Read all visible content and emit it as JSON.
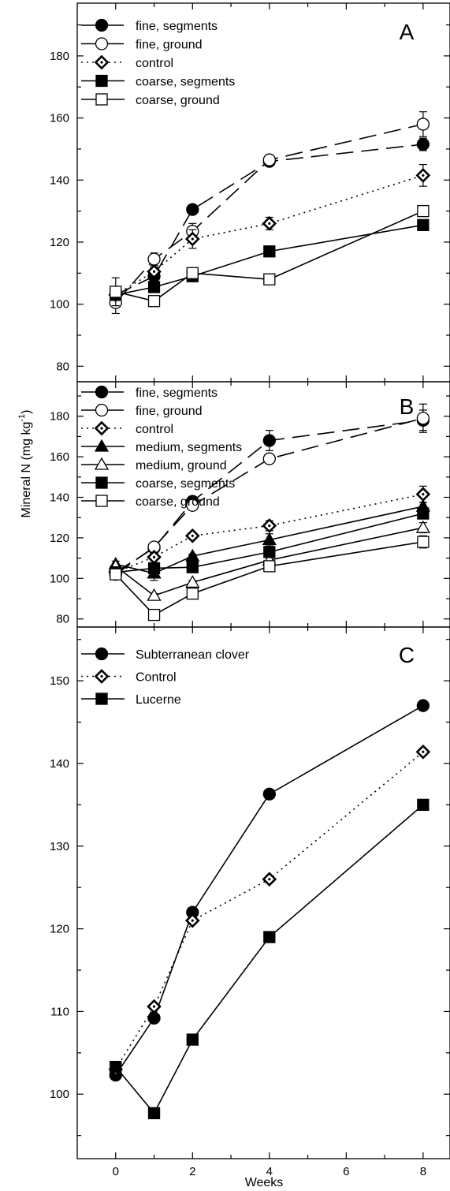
{
  "figure": {
    "y_axis_label": "Mineral N (mg kg",
    "y_axis_label_exponent": "-1",
    "y_axis_label_close": ")",
    "x_axis_label": "Weeks"
  },
  "chart_data": [
    {
      "type": "line",
      "panel_label": "A",
      "title": "",
      "xlabel": "",
      "ylabel": "",
      "xlim": [
        -1,
        8.7
      ],
      "ylim": [
        75,
        197
      ],
      "x_ticks": [
        0,
        2,
        4,
        6,
        8
      ],
      "y_ticks": [
        80,
        100,
        120,
        140,
        160,
        180
      ],
      "y_minor_step": 10,
      "legend_position": "top-left",
      "x": [
        0,
        1,
        2,
        4,
        8
      ],
      "series": [
        {
          "name": "fine, segments",
          "marker": "circle",
          "fill": "filled",
          "line": "long-dash",
          "values": [
            103,
            109,
            130.5,
            146,
            151.5
          ],
          "errors": [
            0,
            1.5,
            1.5,
            1,
            2
          ]
        },
        {
          "name": "fine, ground",
          "marker": "circle",
          "fill": "open",
          "line": "long-dash",
          "values": [
            100.5,
            114.5,
            123.5,
            146.5,
            158
          ],
          "errors": [
            3.5,
            2,
            2.5,
            1,
            4
          ]
        },
        {
          "name": "control",
          "marker": "diamond",
          "fill": "dotted",
          "line": "dotted",
          "values": [
            103,
            110.5,
            121,
            126,
            141.5
          ],
          "errors": [
            0,
            1.5,
            3,
            2,
            3.5
          ]
        },
        {
          "name": "coarse, segments",
          "marker": "square",
          "fill": "filled",
          "line": "solid",
          "values": [
            103,
            105.5,
            109,
            117,
            125.5
          ],
          "errors": [
            0,
            1.5,
            1,
            1,
            1
          ]
        },
        {
          "name": "coarse, ground",
          "marker": "square",
          "fill": "open",
          "line": "solid",
          "values": [
            104,
            101,
            110,
            108,
            130
          ],
          "errors": [
            4.5,
            1,
            1,
            1,
            1
          ]
        }
      ]
    },
    {
      "type": "line",
      "panel_label": "B",
      "title": "",
      "xlabel": "",
      "ylabel": "",
      "xlim": [
        -1,
        8.7
      ],
      "ylim": [
        76,
        197
      ],
      "x_ticks": [
        0,
        2,
        4,
        6,
        8
      ],
      "y_ticks": [
        80,
        100,
        120,
        140,
        160,
        180
      ],
      "y_minor_step": 10,
      "legend_position": "top-left",
      "x": [
        0,
        1,
        2,
        4,
        8
      ],
      "series": [
        {
          "name": "fine, segments",
          "marker": "circle",
          "fill": "filled",
          "line": "long-dash",
          "values": [
            103,
            115,
            138,
            168,
            178
          ],
          "errors": [
            0,
            1,
            2.5,
            5,
            5
          ]
        },
        {
          "name": "fine, ground",
          "marker": "circle",
          "fill": "open",
          "line": "long-dash",
          "values": [
            102,
            115.5,
            136,
            159,
            179
          ],
          "errors": [
            2,
            1,
            1.5,
            1,
            7
          ]
        },
        {
          "name": "control",
          "marker": "diamond",
          "fill": "dotted",
          "line": "dotted",
          "values": [
            103,
            110.5,
            121,
            126,
            141.5
          ],
          "errors": [
            0,
            1.5,
            1.5,
            2.5,
            4
          ]
        },
        {
          "name": "medium, segments",
          "marker": "triangle",
          "fill": "filled",
          "line": "solid",
          "values": [
            107,
            102.5,
            111,
            119,
            135.5
          ],
          "errors": [
            1.5,
            3.5,
            1,
            3,
            2
          ]
        },
        {
          "name": "medium, ground",
          "marker": "triangle",
          "fill": "open",
          "line": "solid",
          "values": [
            106,
            91.5,
            98,
            109,
            125
          ],
          "errors": [
            1,
            1,
            1,
            1.5,
            2.5
          ]
        },
        {
          "name": "coarse, segments",
          "marker": "square",
          "fill": "filled",
          "line": "solid",
          "values": [
            103,
            105,
            105.5,
            113,
            132
          ],
          "errors": [
            0,
            1,
            1,
            1,
            2
          ]
        },
        {
          "name": "coarse, ground",
          "marker": "square",
          "fill": "open",
          "line": "solid",
          "values": [
            102,
            82,
            92.5,
            106,
            118
          ],
          "errors": [
            2.5,
            1,
            1,
            1,
            3
          ]
        }
      ]
    },
    {
      "type": "line",
      "panel_label": "C",
      "title": "",
      "xlabel": "",
      "ylabel": "",
      "xlim": [
        -1,
        8.7
      ],
      "ylim": [
        92.2,
        156.5
      ],
      "x_ticks": [
        0,
        2,
        4,
        6,
        8
      ],
      "y_ticks": [
        100,
        110,
        120,
        130,
        140,
        150
      ],
      "y_minor_step": 5,
      "legend_position": "top-left",
      "x": [
        0,
        1,
        2,
        4,
        8
      ],
      "series": [
        {
          "name": "Subterranean clover",
          "marker": "circle",
          "fill": "filled",
          "line": "solid",
          "values": [
            102.3,
            109.2,
            122,
            136.3,
            147
          ],
          "errors": []
        },
        {
          "name": "Control",
          "marker": "diamond",
          "fill": "dotted",
          "line": "dotted",
          "values": [
            103,
            110.6,
            121,
            126,
            141.4
          ],
          "errors": []
        },
        {
          "name": "Lucerne",
          "marker": "square",
          "fill": "filled",
          "line": "solid",
          "values": [
            103.3,
            97.7,
            106.6,
            119,
            135
          ],
          "errors": []
        }
      ]
    }
  ]
}
